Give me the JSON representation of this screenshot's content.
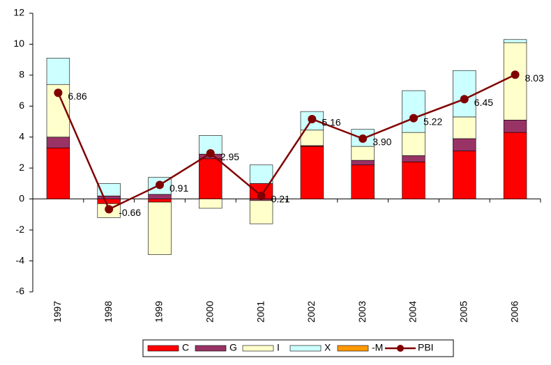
{
  "chart_data": {
    "type": "bar",
    "categories": [
      "1997",
      "1998",
      "1999",
      "2000",
      "2001",
      "2002",
      "2003",
      "2004",
      "2005",
      "2006"
    ],
    "series": [
      {
        "name": "C",
        "type": "bar",
        "color": "#ff0000",
        "values": [
          3.3,
          -0.3,
          -0.2,
          2.6,
          1.0,
          3.4,
          2.2,
          2.4,
          3.1,
          4.3
        ]
      },
      {
        "name": "G",
        "type": "bar",
        "color": "#993366",
        "values": [
          0.7,
          0.2,
          0.3,
          0.3,
          -0.1,
          0.05,
          0.3,
          0.4,
          0.8,
          0.8
        ]
      },
      {
        "name": "I",
        "type": "bar",
        "color": "#ffffcc",
        "values": [
          3.4,
          -0.9,
          -3.4,
          -0.6,
          -1.5,
          1.0,
          0.9,
          1.5,
          1.4,
          5.0
        ]
      },
      {
        "name": "X",
        "type": "bar",
        "color": "#ccffff",
        "values": [
          1.7,
          0.8,
          1.1,
          1.2,
          1.2,
          1.2,
          1.1,
          2.7,
          3.0,
          0.2
        ]
      },
      {
        "name": "-M",
        "type": "bar",
        "color": "#ff9900",
        "values": [
          0,
          0,
          0,
          0,
          0,
          0,
          0,
          0,
          0,
          0
        ]
      },
      {
        "name": "PBI",
        "type": "line",
        "color": "#800000",
        "values": [
          6.86,
          -0.66,
          0.91,
          2.95,
          0.21,
          5.16,
          3.9,
          5.22,
          6.45,
          8.03
        ],
        "value_labels": [
          "6.86",
          "-0.66",
          "0.91",
          "2.95",
          "0.21",
          "5.16",
          "3.90",
          "5.22",
          "6.45",
          "8.03"
        ]
      }
    ],
    "ylim": [
      -6,
      12
    ],
    "yticks": [
      -6,
      -4,
      -2,
      0,
      2,
      4,
      6,
      8,
      10,
      12
    ]
  }
}
